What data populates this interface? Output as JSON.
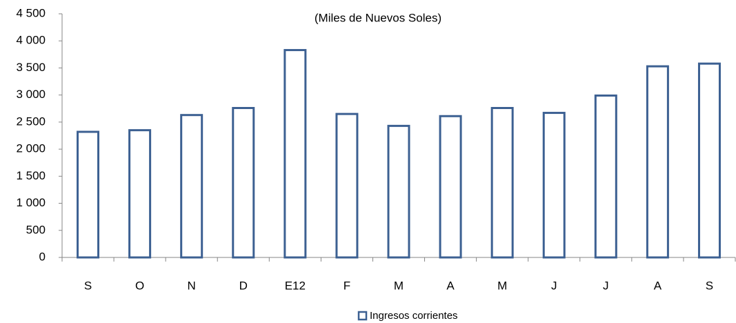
{
  "chart_data": {
    "type": "bar",
    "subtitle": "(Miles de Nuevos Soles)",
    "categories": [
      "S",
      "O",
      "N",
      "D",
      "E12",
      "F",
      "M",
      "A",
      "M",
      "J",
      "J",
      "A",
      "S"
    ],
    "series": [
      {
        "name": "Ingresos corrientes",
        "color": "#3c6092",
        "values": [
          2320,
          2350,
          2630,
          2760,
          3830,
          2650,
          2430,
          2610,
          2760,
          2670,
          2990,
          3530,
          3580
        ]
      }
    ],
    "ylim": [
      0,
      4500
    ],
    "yticks": [
      0,
      500,
      {
        "value": 1000,
        "label": "1 000"
      },
      {
        "value": 1500,
        "label": "1 500"
      },
      {
        "value": 2000,
        "label": "2 000"
      },
      {
        "value": 2500,
        "label": "2 500"
      },
      {
        "value": 3000,
        "label": "3 000"
      },
      {
        "value": 3500,
        "label": "3 500"
      },
      {
        "value": 4000,
        "label": "4 000"
      },
      {
        "value": 4500,
        "label": "4 500"
      }
    ],
    "grid": false,
    "legend": "bottom"
  }
}
